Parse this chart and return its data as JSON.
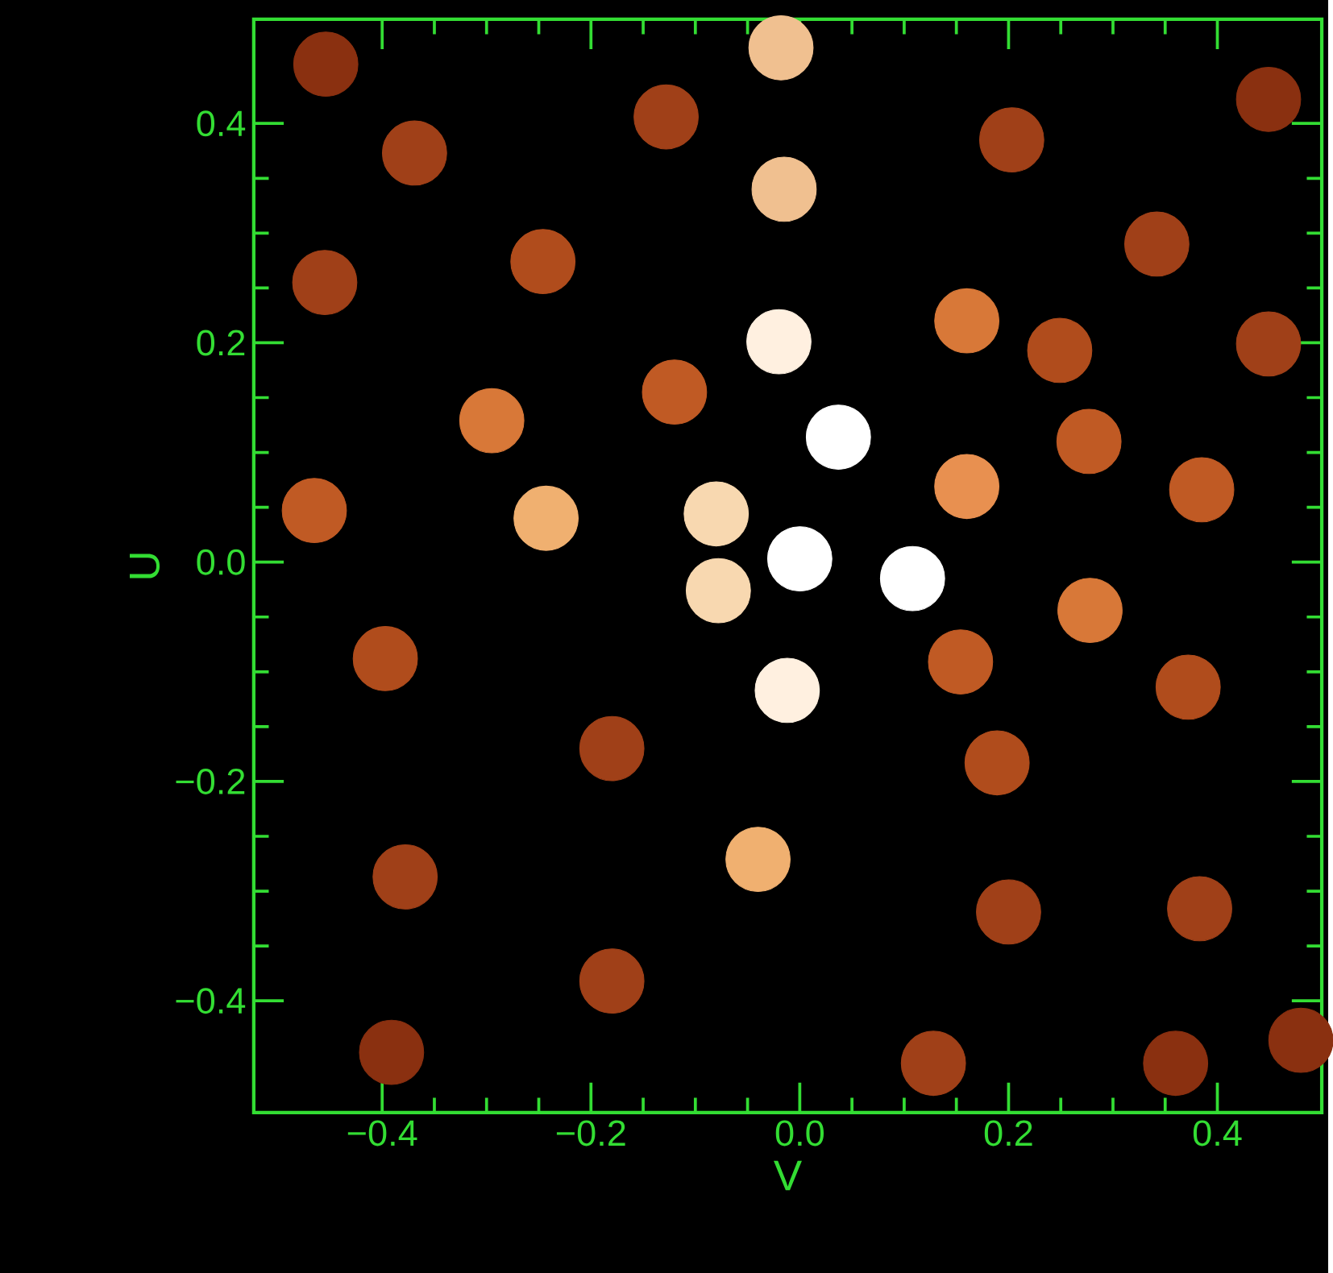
{
  "chart_data": {
    "type": "scatter",
    "xlabel": "V",
    "ylabel": "U",
    "xlim": [
      -0.523,
      0.5
    ],
    "ylim": [
      -0.502,
      0.495
    ],
    "xticks": [
      {
        "value": -0.4,
        "label": "−0.4"
      },
      {
        "value": -0.2,
        "label": "−0.2"
      },
      {
        "value": 0,
        "label": "0.0"
      },
      {
        "value": 0.2,
        "label": "0.2"
      },
      {
        "value": 0.4,
        "label": "0.4"
      }
    ],
    "yticks": [
      {
        "value": -0.4,
        "label": "−0.4"
      },
      {
        "value": -0.2,
        "label": "−0.2"
      },
      {
        "value": 0,
        "label": "0.0"
      },
      {
        "value": 0.2,
        "label": "0.2"
      },
      {
        "value": 0.4,
        "label": "0.4"
      }
    ],
    "grid": false,
    "x": [
      -0.454,
      -0.018,
      -0.369,
      -0.128,
      -0.015,
      0.203,
      0.449,
      -0.455,
      -0.246,
      0.342,
      -0.02,
      0.16,
      0.249,
      0.449,
      -0.12,
      -0.295,
      0.037,
      0.277,
      -0.465,
      -0.243,
      -0.08,
      0.16,
      0.385,
      0.0,
      0.108,
      -0.078,
      0.278,
      -0.397,
      0.154,
      -0.012,
      0.372,
      -0.18,
      0.189,
      -0.04,
      -0.378,
      0.2,
      0.383,
      -0.18,
      -0.391,
      0.128,
      0.36,
      0.48
    ],
    "values": [
      0.454,
      0.469,
      0.373,
      0.406,
      0.34,
      0.385,
      0.422,
      0.255,
      0.274,
      0.29,
      0.201,
      0.22,
      0.193,
      0.199,
      0.155,
      0.129,
      0.114,
      0.11,
      0.047,
      0.04,
      0.044,
      0.069,
      0.066,
      0.003,
      -0.015,
      -0.026,
      -0.044,
      -0.088,
      -0.091,
      -0.117,
      -0.114,
      -0.17,
      -0.183,
      -0.271,
      -0.287,
      -0.319,
      -0.316,
      -0.382,
      -0.447,
      -0.457,
      -0.457,
      -0.436
    ],
    "colors": [
      "#8a3010",
      "#f0c090",
      "#a04018",
      "#a04018",
      "#f0c090",
      "#a04018",
      "#8a3010",
      "#a04018",
      "#b04c1c",
      "#a04018",
      "#fff0e0",
      "#d87838",
      "#b04c1c",
      "#a04018",
      "#c05a24",
      "#d87838",
      "#ffffff",
      "#c05a24",
      "#c05a24",
      "#f0b070",
      "#f8d8b0",
      "#e89050",
      "#c05a24",
      "#ffffff",
      "#ffffff",
      "#f8d8b0",
      "#d87838",
      "#b04c1c",
      "#c05a24",
      "#fff0e0",
      "#b04c1c",
      "#a04018",
      "#b04c1c",
      "#f0b070",
      "#a04018",
      "#a04018",
      "#a04018",
      "#a04018",
      "#8a3010",
      "#a04018",
      "#8a3010",
      "#8a3010"
    ]
  }
}
